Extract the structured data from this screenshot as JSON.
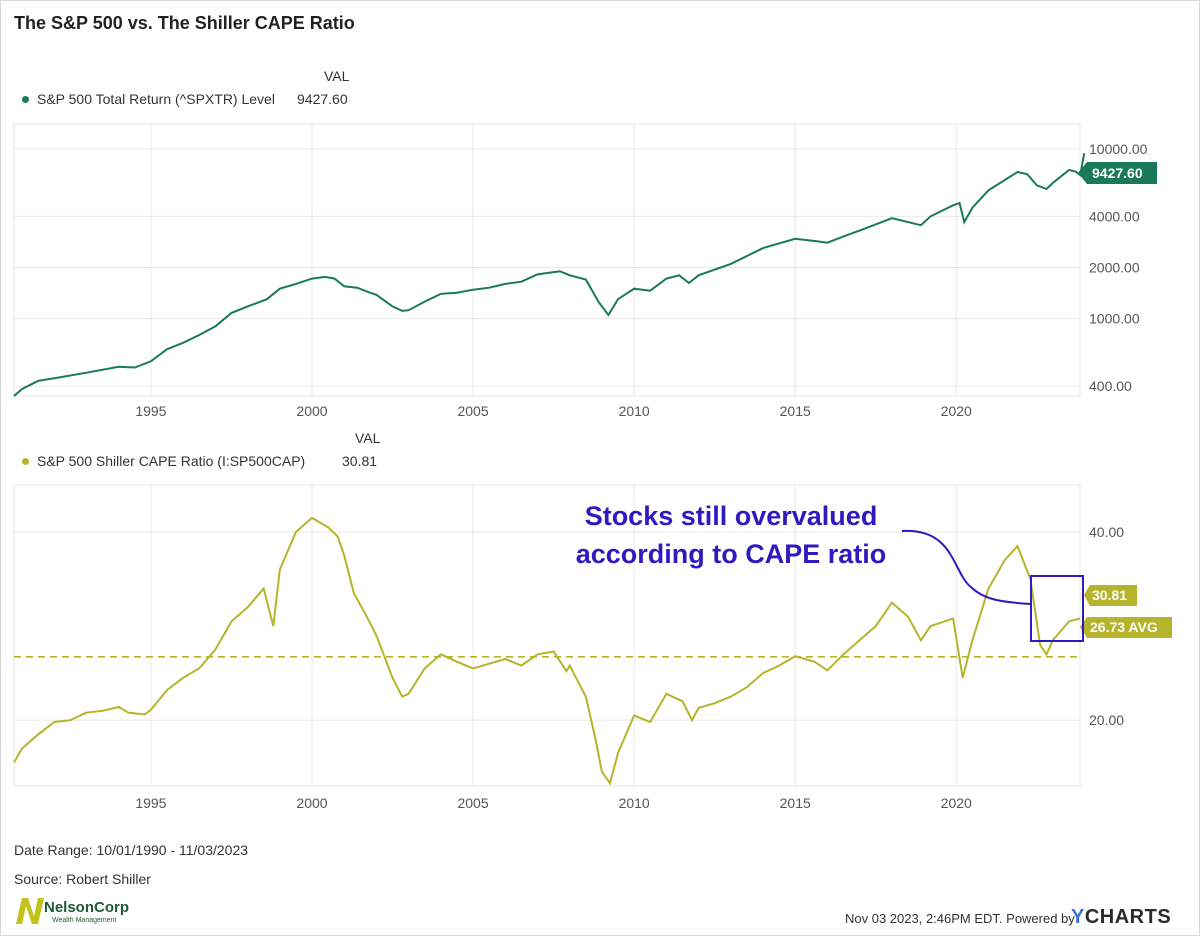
{
  "title": "The S&P 500 vs. The Shiller CAPE Ratio",
  "top_panel": {
    "val_header": "VAL",
    "legend_label": "S&P 500 Total Return (^SPXTR) Level",
    "legend_value": "9427.60",
    "color": "#1a7a58",
    "end_label": "9427.60"
  },
  "bottom_panel": {
    "val_header": "VAL",
    "legend_label": "S&P 500 Shiller CAPE Ratio (I:SP500CAP)",
    "legend_value": "30.81",
    "color": "#b5b42a",
    "end_label": "30.81",
    "avg_label": "26.73 AVG",
    "annotation_line1": "Stocks still overvalued",
    "annotation_line2": "according to CAPE ratio",
    "annotation_color": "#2e1bbf"
  },
  "chart_data": [
    {
      "type": "line",
      "series": [
        {
          "name": "S&P 500 Total Return (^SPXTR) Level",
          "points": [
            [
              1990.75,
              350
            ],
            [
              1991.0,
              385
            ],
            [
              1991.5,
              430
            ],
            [
              1992,
              445
            ],
            [
              1993,
              480
            ],
            [
              1994,
              520
            ],
            [
              1994.5,
              515
            ],
            [
              1995,
              560
            ],
            [
              1995.5,
              660
            ],
            [
              1996,
              720
            ],
            [
              1996.5,
              800
            ],
            [
              1997,
              900
            ],
            [
              1997.5,
              1080
            ],
            [
              1998,
              1180
            ],
            [
              1998.6,
              1300
            ],
            [
              1999,
              1500
            ],
            [
              1999.5,
              1600
            ],
            [
              2000,
              1720
            ],
            [
              2000.4,
              1760
            ],
            [
              2000.7,
              1720
            ],
            [
              2001,
              1550
            ],
            [
              2001.4,
              1520
            ],
            [
              2001.8,
              1420
            ],
            [
              2002,
              1380
            ],
            [
              2002.5,
              1180
            ],
            [
              2002.8,
              1110
            ],
            [
              2003,
              1120
            ],
            [
              2003.5,
              1260
            ],
            [
              2004,
              1400
            ],
            [
              2004.5,
              1420
            ],
            [
              2005,
              1480
            ],
            [
              2005.5,
              1520
            ],
            [
              2006,
              1600
            ],
            [
              2006.5,
              1650
            ],
            [
              2007,
              1820
            ],
            [
              2007.7,
              1900
            ],
            [
              2008,
              1800
            ],
            [
              2008.5,
              1700
            ],
            [
              2008.9,
              1250
            ],
            [
              2009.2,
              1050
            ],
            [
              2009.5,
              1300
            ],
            [
              2010,
              1500
            ],
            [
              2010.5,
              1460
            ],
            [
              2011,
              1720
            ],
            [
              2011.4,
              1800
            ],
            [
              2011.7,
              1620
            ],
            [
              2012,
              1800
            ],
            [
              2013,
              2100
            ],
            [
              2014,
              2600
            ],
            [
              2015,
              2950
            ],
            [
              2015.7,
              2850
            ],
            [
              2016,
              2800
            ],
            [
              2016.5,
              3050
            ],
            [
              2017,
              3300
            ],
            [
              2018,
              3900
            ],
            [
              2018.9,
              3550
            ],
            [
              2019.2,
              4000
            ],
            [
              2019.9,
              4650
            ],
            [
              2020.1,
              4800
            ],
            [
              2020.25,
              3700
            ],
            [
              2020.5,
              4500
            ],
            [
              2021,
              5700
            ],
            [
              2021.9,
              7300
            ],
            [
              2022.2,
              7100
            ],
            [
              2022.5,
              6100
            ],
            [
              2022.8,
              5800
            ],
            [
              2023,
              6300
            ],
            [
              2023.5,
              7500
            ],
            [
              2023.7,
              7350
            ],
            [
              2023.85,
              7000
            ],
            [
              2023.97,
              9427.6
            ]
          ]
        }
      ],
      "ylabel_scale": "log",
      "y_ticks": [
        "400.00",
        "1000.00",
        "2000.00",
        "4000.00",
        "10000.00"
      ],
      "x_ticks": [
        "1995",
        "2000",
        "2005",
        "2010",
        "2015",
        "2020"
      ],
      "xlim": [
        1990.75,
        2023.84
      ],
      "ylim": [
        350,
        14000
      ],
      "grid": true
    },
    {
      "type": "line",
      "series": [
        {
          "name": "S&P 500 Shiller CAPE Ratio (I:SP500CAP)",
          "points": [
            [
              1990.75,
              15.5
            ],
            [
              1991,
              17.0
            ],
            [
              1991.5,
              18.5
            ],
            [
              1992,
              19.8
            ],
            [
              1992.5,
              20.0
            ],
            [
              1993,
              20.8
            ],
            [
              1993.5,
              21.0
            ],
            [
              1994,
              21.4
            ],
            [
              1994.3,
              20.8
            ],
            [
              1994.8,
              20.6
            ],
            [
              1995,
              21.1
            ],
            [
              1995.5,
              23.2
            ],
            [
              1996,
              24.5
            ],
            [
              1996.5,
              25.5
            ],
            [
              1997,
              27.5
            ],
            [
              1997.5,
              30.5
            ],
            [
              1998,
              32.0
            ],
            [
              1998.5,
              34.0
            ],
            [
              1998.8,
              30.0
            ],
            [
              1999,
              36.0
            ],
            [
              1999.5,
              40.0
            ],
            [
              2000,
              41.5
            ],
            [
              2000.5,
              40.5
            ],
            [
              2000.8,
              39.5
            ],
            [
              2001,
              37.5
            ],
            [
              2001.3,
              33.5
            ],
            [
              2001.7,
              31.0
            ],
            [
              2002,
              29.0
            ],
            [
              2002.5,
              24.5
            ],
            [
              2002.8,
              22.5
            ],
            [
              2003,
              22.8
            ],
            [
              2003.5,
              25.5
            ],
            [
              2004,
              27.0
            ],
            [
              2004.5,
              26.2
            ],
            [
              2005,
              25.5
            ],
            [
              2005.5,
              26.0
            ],
            [
              2006,
              26.5
            ],
            [
              2006.5,
              25.8
            ],
            [
              2007,
              27.0
            ],
            [
              2007.5,
              27.3
            ],
            [
              2007.9,
              25.2
            ],
            [
              2008,
              25.8
            ],
            [
              2008.5,
              22.5
            ],
            [
              2008.8,
              18.0
            ],
            [
              2009.0,
              14.5
            ],
            [
              2009.25,
              13.3
            ],
            [
              2009.5,
              16.5
            ],
            [
              2010,
              20.5
            ],
            [
              2010.5,
              19.8
            ],
            [
              2011,
              22.8
            ],
            [
              2011.5,
              22.0
            ],
            [
              2011.8,
              20.0
            ],
            [
              2012,
              21.3
            ],
            [
              2012.5,
              21.8
            ],
            [
              2013,
              22.5
            ],
            [
              2013.5,
              23.5
            ],
            [
              2014,
              25.0
            ],
            [
              2014.5,
              25.8
            ],
            [
              2015,
              26.8
            ],
            [
              2015.6,
              26.2
            ],
            [
              2016,
              25.3
            ],
            [
              2016.5,
              27.0
            ],
            [
              2017,
              28.5
            ],
            [
              2017.5,
              30.0
            ],
            [
              2018,
              32.5
            ],
            [
              2018.5,
              31.0
            ],
            [
              2018.9,
              28.5
            ],
            [
              2019.2,
              30.0
            ],
            [
              2019.9,
              30.8
            ],
            [
              2020.2,
              24.5
            ],
            [
              2020.5,
              28.5
            ],
            [
              2021,
              34.0
            ],
            [
              2021.5,
              37.0
            ],
            [
              2021.9,
              38.5
            ],
            [
              2022.3,
              35.0
            ],
            [
              2022.6,
              28.0
            ],
            [
              2022.8,
              27.0
            ],
            [
              2023,
              28.5
            ],
            [
              2023.5,
              30.5
            ],
            [
              2023.84,
              30.81
            ]
          ]
        }
      ],
      "average": 26.73,
      "y_ticks": [
        "20.00",
        "40.00"
      ],
      "x_ticks": [
        "1995",
        "2000",
        "2005",
        "2010",
        "2015",
        "2020"
      ],
      "xlim": [
        1990.75,
        2023.84
      ],
      "ylim": [
        13,
        45
      ],
      "grid": true
    }
  ],
  "footer": {
    "date_range": "Date Range: 10/01/1990 - 11/03/2023",
    "source": "Source: Robert Shiller",
    "timestamp": "Nov 03 2023, 2:46PM EDT.  Powered by",
    "brand_y": "Y",
    "brand_rest": "CHARTS",
    "logo_text": "NelsonCorp",
    "logo_sub": "Wealth Management"
  }
}
